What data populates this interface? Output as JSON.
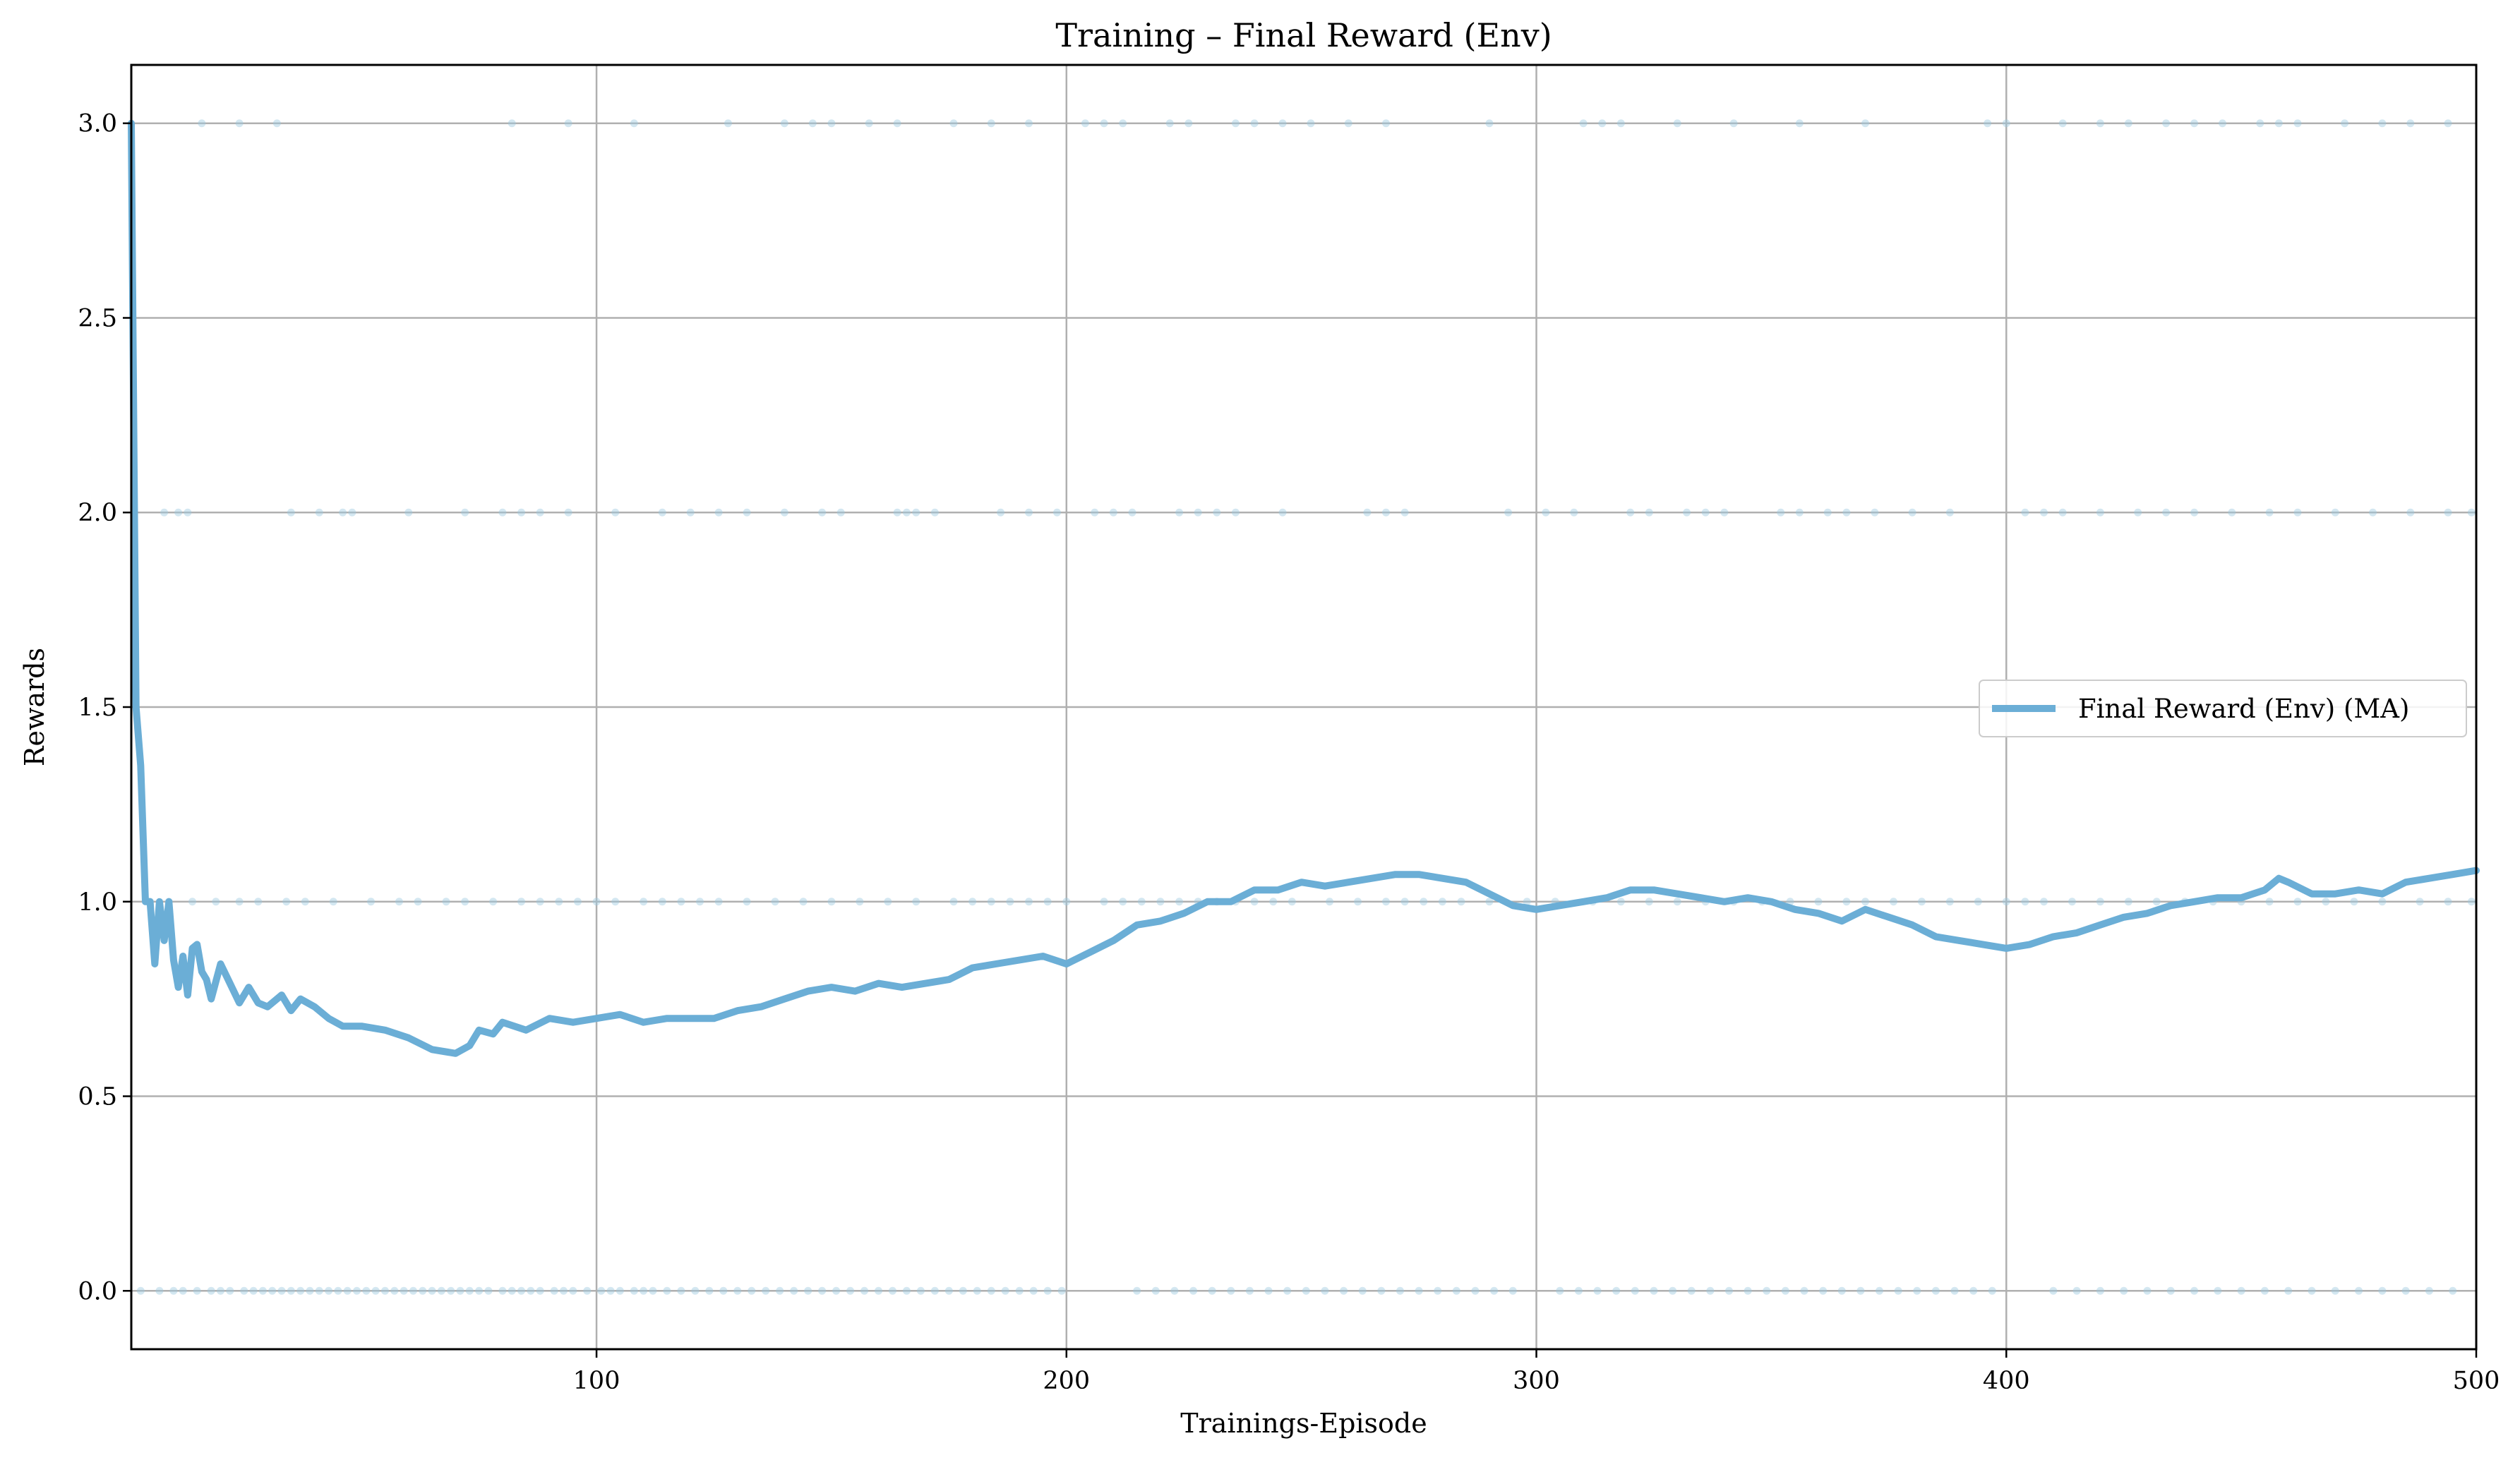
{
  "chart_data": {
    "type": "line",
    "title": "Training – Final Reward (Env)",
    "xlabel": "Trainings-Episode",
    "ylabel": "Rewards",
    "xlim": [
      1,
      500
    ],
    "ylim": [
      -0.15,
      3.15
    ],
    "xticks": [
      100,
      200,
      300,
      400,
      500
    ],
    "xtick_labels": [
      "100",
      "200",
      "300",
      "400",
      "500"
    ],
    "yticks": [
      0.0,
      0.5,
      1.0,
      1.5,
      2.0,
      2.5,
      3.0
    ],
    "ytick_labels": [
      "0.0",
      "0.5",
      "1.0",
      "1.5",
      "2.0",
      "2.5",
      "3.0"
    ],
    "grid": true,
    "legend_position": "center-right",
    "colors": {
      "line": "#6baed6",
      "raw": "#9ecae1",
      "grid": "#b0b0b0"
    },
    "series": [
      {
        "name": "Final Reward (Env) (MA)",
        "kind": "moving-average",
        "x": [
          1,
          2,
          3,
          4,
          5,
          6,
          7,
          8,
          9,
          10,
          11,
          12,
          13,
          14,
          15,
          16,
          17,
          18,
          20,
          22,
          24,
          26,
          28,
          30,
          33,
          35,
          37,
          40,
          43,
          46,
          50,
          55,
          60,
          65,
          70,
          73,
          75,
          78,
          80,
          85,
          90,
          95,
          100,
          105,
          110,
          115,
          120,
          125,
          130,
          135,
          140,
          145,
          150,
          155,
          160,
          165,
          170,
          175,
          180,
          185,
          190,
          195,
          200,
          205,
          210,
          215,
          220,
          225,
          230,
          235,
          240,
          245,
          250,
          255,
          260,
          265,
          270,
          275,
          280,
          285,
          290,
          295,
          300,
          305,
          310,
          315,
          320,
          325,
          330,
          335,
          340,
          345,
          350,
          355,
          360,
          365,
          370,
          375,
          380,
          385,
          390,
          395,
          400,
          405,
          410,
          415,
          420,
          425,
          430,
          435,
          440,
          445,
          450,
          455,
          458,
          460,
          465,
          470,
          475,
          480,
          485,
          490,
          495,
          500
        ],
        "values": [
          3.0,
          1.5,
          1.35,
          1.0,
          1.0,
          0.84,
          1.0,
          0.9,
          1.0,
          0.85,
          0.78,
          0.86,
          0.76,
          0.88,
          0.89,
          0.82,
          0.8,
          0.75,
          0.84,
          0.79,
          0.74,
          0.78,
          0.74,
          0.73,
          0.76,
          0.72,
          0.75,
          0.73,
          0.7,
          0.68,
          0.68,
          0.67,
          0.65,
          0.62,
          0.61,
          0.63,
          0.67,
          0.66,
          0.69,
          0.67,
          0.7,
          0.69,
          0.7,
          0.71,
          0.69,
          0.7,
          0.7,
          0.7,
          0.72,
          0.73,
          0.75,
          0.77,
          0.78,
          0.77,
          0.79,
          0.78,
          0.79,
          0.8,
          0.83,
          0.84,
          0.85,
          0.86,
          0.84,
          0.87,
          0.9,
          0.94,
          0.95,
          0.97,
          1.0,
          1.0,
          1.03,
          1.03,
          1.05,
          1.04,
          1.05,
          1.06,
          1.07,
          1.07,
          1.06,
          1.05,
          1.02,
          0.99,
          0.98,
          0.99,
          1.0,
          1.01,
          1.03,
          1.03,
          1.02,
          1.01,
          1.0,
          1.01,
          1.0,
          0.98,
          0.97,
          0.95,
          0.98,
          0.96,
          0.94,
          0.91,
          0.9,
          0.89,
          0.88,
          0.89,
          0.91,
          0.92,
          0.94,
          0.96,
          0.97,
          0.99,
          1.0,
          1.01,
          1.01,
          1.03,
          1.06,
          1.05,
          1.02,
          1.02,
          1.03,
          1.02,
          1.05,
          1.06,
          1.07,
          1.08
        ]
      },
      {
        "kind": "raw-points",
        "points": {
          "0": [
            3,
            7,
            10,
            12,
            15,
            18,
            20,
            22,
            25,
            27,
            29,
            31,
            33,
            35,
            37,
            39,
            41,
            43,
            45,
            47,
            49,
            51,
            53,
            55,
            57,
            59,
            61,
            63,
            65,
            67,
            69,
            71,
            73,
            75,
            77,
            80,
            82,
            84,
            86,
            88,
            91,
            93,
            95,
            98,
            101,
            103,
            105,
            108,
            110,
            112,
            115,
            118,
            121,
            124,
            127,
            130,
            133,
            136,
            139,
            142,
            145,
            148,
            151,
            154,
            157,
            160,
            163,
            166,
            169,
            172,
            175,
            178,
            181,
            184,
            187,
            190,
            193,
            196,
            199,
            215,
            219,
            223,
            227,
            231,
            235,
            239,
            243,
            247,
            251,
            255,
            259,
            263,
            267,
            271,
            275,
            279,
            283,
            287,
            291,
            295,
            305,
            309,
            313,
            317,
            321,
            325,
            329,
            333,
            337,
            341,
            345,
            349,
            353,
            357,
            361,
            365,
            369,
            373,
            377,
            381,
            385,
            389,
            393,
            397,
            410,
            415,
            420,
            425,
            430,
            435,
            440,
            445,
            450,
            455,
            460,
            465,
            470,
            475,
            480,
            485,
            490,
            495
          ],
          "1": [
            5,
            9,
            14,
            19,
            24,
            28,
            34,
            38,
            44,
            52,
            58,
            62,
            68,
            72,
            78,
            84,
            88,
            92,
            96,
            100,
            104,
            110,
            114,
            118,
            122,
            126,
            132,
            138,
            144,
            150,
            156,
            162,
            168,
            176,
            180,
            184,
            188,
            192,
            196,
            200,
            208,
            212,
            216,
            220,
            224,
            228,
            232,
            236,
            240,
            244,
            248,
            256,
            262,
            268,
            272,
            276,
            280,
            284,
            290,
            298,
            304,
            312,
            318,
            324,
            330,
            336,
            342,
            348,
            354,
            360,
            366,
            370,
            376,
            382,
            388,
            394,
            400,
            404,
            408,
            414,
            420,
            426,
            432,
            438,
            444,
            450,
            456,
            462,
            468,
            474,
            480,
            488,
            494,
            499
          ],
          "2": [
            8,
            11,
            13,
            35,
            41,
            46,
            48,
            60,
            72,
            80,
            84,
            88,
            94,
            104,
            114,
            120,
            126,
            132,
            140,
            148,
            152,
            164,
            166,
            168,
            172,
            186,
            192,
            198,
            206,
            210,
            214,
            224,
            228,
            232,
            236,
            246,
            264,
            268,
            272,
            294,
            302,
            308,
            320,
            324,
            332,
            336,
            340,
            352,
            356,
            362,
            366,
            372,
            380,
            388,
            404,
            408,
            412,
            420,
            428,
            434,
            440,
            448,
            456,
            462,
            470,
            478,
            486,
            494,
            499
          ],
          "3": [
            16,
            24,
            32,
            82,
            94,
            108,
            128,
            140,
            146,
            150,
            158,
            164,
            176,
            184,
            192,
            204,
            208,
            212,
            222,
            226,
            236,
            240,
            246,
            252,
            260,
            268,
            290,
            310,
            314,
            318,
            330,
            342,
            356,
            370,
            396,
            400,
            412,
            420,
            426,
            434,
            440,
            446,
            454,
            458,
            462,
            472,
            480,
            486,
            494
          ]
        }
      }
    ]
  }
}
